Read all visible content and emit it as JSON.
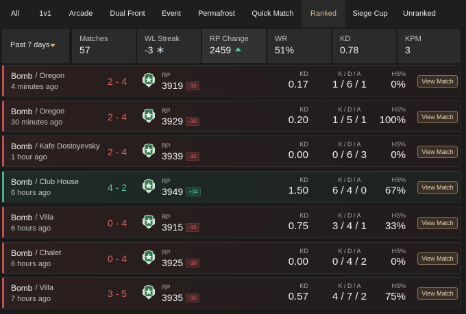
{
  "tabs": {
    "items": [
      "All",
      "1v1",
      "Arcade",
      "Dual Front",
      "Event",
      "Permafrost",
      "Quick Match",
      "Ranked",
      "Siege Cup",
      "Unranked"
    ],
    "active": 7
  },
  "summary": {
    "period": "Past 7 days",
    "stats": [
      {
        "label": "Matches",
        "value": "57"
      },
      {
        "label": "WL Streak",
        "value": "-3"
      },
      {
        "label": "RP Change",
        "value": "2459"
      },
      {
        "label": "WR",
        "value": "51%"
      },
      {
        "label": "KD",
        "value": "0.78"
      },
      {
        "label": "KPM",
        "value": "3"
      }
    ]
  },
  "column_labels": {
    "rp": "RP",
    "kd": "KD",
    "kda": "K / D / A",
    "hs": "HS%",
    "button": "View Match"
  },
  "matches": [
    {
      "mode": "Bomb",
      "map": "/ Oregon",
      "time": "4 minutes ago",
      "score": "2 - 4",
      "result": "loss",
      "rp": "3919",
      "rp_delta": "-10",
      "kd": "0.17",
      "kda": "1 / 6 / 1",
      "hs": "0%"
    },
    {
      "mode": "Bomb",
      "map": "/ Oregon",
      "time": "30 minutes ago",
      "score": "2 - 4",
      "result": "loss",
      "rp": "3929",
      "rp_delta": "-10",
      "kd": "0.20",
      "kda": "1 / 5 / 1",
      "hs": "100%"
    },
    {
      "mode": "Bomb",
      "map": "/ Kafe Dostoyevsky",
      "time": "1 hour ago",
      "score": "2 - 4",
      "result": "loss",
      "rp": "3939",
      "rp_delta": "-10",
      "kd": "0.00",
      "kda": "0 / 6 / 3",
      "hs": "0%"
    },
    {
      "mode": "Bomb",
      "map": "/ Club House",
      "time": "6 hours ago",
      "score": "4 - 2",
      "result": "win",
      "rp": "3949",
      "rp_delta": "+34",
      "kd": "1.50",
      "kda": "6 / 4 / 0",
      "hs": "67%"
    },
    {
      "mode": "Bomb",
      "map": "/ Villa",
      "time": "6 hours ago",
      "score": "0 - 4",
      "result": "loss",
      "rp": "3915",
      "rp_delta": "-10",
      "kd": "0.75",
      "kda": "3 / 4 / 1",
      "hs": "33%"
    },
    {
      "mode": "Bomb",
      "map": "/ Chalet",
      "time": "6 hours ago",
      "score": "0 - 4",
      "result": "loss",
      "rp": "3925",
      "rp_delta": "-10",
      "kd": "0.00",
      "kda": "0 / 4 / 2",
      "hs": "0%"
    },
    {
      "mode": "Bomb",
      "map": "/ Villa",
      "time": "7 hours ago",
      "score": "3 - 5",
      "result": "loss",
      "rp": "3935",
      "rp_delta": "-10",
      "kd": "0.57",
      "kda": "4 / 7 / 2",
      "hs": "75%"
    }
  ]
}
